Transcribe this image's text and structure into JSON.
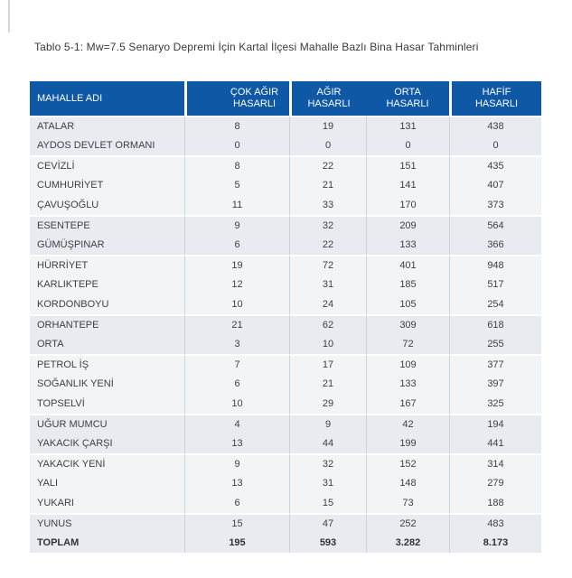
{
  "title": "Tablo 5-1: Mw=7.5 Senaryo Depremi İçin Kartal İlçesi Mahalle Bazlı Bina Hasar Tahminleri",
  "table": {
    "header": {
      "name_col": "MAHALLE ADI",
      "cok_agir": [
        "ÇOK AĞIR",
        "HASARLI"
      ],
      "agir": [
        "AĞIR",
        "HASARLI"
      ],
      "orta": [
        "ORTA",
        "HASARLI"
      ],
      "hafif": [
        "HAFİF",
        "HASARLI"
      ]
    },
    "rows": [
      {
        "name": "ATALAR",
        "values": [
          "8",
          "19",
          "131",
          "438"
        ]
      },
      {
        "name": "AYDOS DEVLET ORMANI",
        "values": [
          "0",
          "0",
          "0",
          "0"
        ]
      },
      {
        "name": "CEVİZLİ",
        "values": [
          "8",
          "22",
          "151",
          "435"
        ]
      },
      {
        "name": "CUMHURİYET",
        "values": [
          "5",
          "21",
          "141",
          "407"
        ]
      },
      {
        "name": "ÇAVUŞOĞLU",
        "values": [
          "11",
          "33",
          "170",
          "373"
        ]
      },
      {
        "name": "ESENTEPE",
        "values": [
          "9",
          "32",
          "209",
          "564"
        ]
      },
      {
        "name": "GÜMÜŞPINAR",
        "values": [
          "6",
          "22",
          "133",
          "366"
        ]
      },
      {
        "name": "HÜRRİYET",
        "values": [
          "19",
          "72",
          "401",
          "948"
        ]
      },
      {
        "name": "KARLIKTEPE",
        "values": [
          "12",
          "31",
          "185",
          "517"
        ]
      },
      {
        "name": "KORDONBOYU",
        "values": [
          "10",
          "24",
          "105",
          "254"
        ]
      },
      {
        "name": "ORHANTEPE",
        "values": [
          "21",
          "62",
          "309",
          "618"
        ]
      },
      {
        "name": "ORTA",
        "values": [
          "3",
          "10",
          "72",
          "255"
        ]
      },
      {
        "name": "PETROL İŞ",
        "values": [
          "7",
          "17",
          "109",
          "377"
        ]
      },
      {
        "name": "SOĞANLIK YENİ",
        "values": [
          "6",
          "21",
          "133",
          "397"
        ]
      },
      {
        "name": "TOPSELVİ",
        "values": [
          "10",
          "29",
          "167",
          "325"
        ]
      },
      {
        "name": "UĞUR MUMCU",
        "values": [
          "4",
          "9",
          "42",
          "194"
        ]
      },
      {
        "name": "YAKACIK ÇARŞI",
        "values": [
          "13",
          "44",
          "199",
          "441"
        ]
      },
      {
        "name": "YAKACIK YENİ",
        "values": [
          "9",
          "32",
          "152",
          "314"
        ]
      },
      {
        "name": "YALI",
        "values": [
          "13",
          "31",
          "148",
          "279"
        ]
      },
      {
        "name": "YUKARI",
        "values": [
          "6",
          "15",
          "73",
          "188"
        ]
      },
      {
        "name": "YUNUS",
        "values": [
          "15",
          "47",
          "252",
          "483"
        ]
      }
    ],
    "total_row": {
      "name": "TOPLAM",
      "values": [
        "195",
        "593",
        "3.282",
        "8.173"
      ]
    }
  },
  "colors": {
    "header_bg": "#0e58a6",
    "header_text": "#ffffff",
    "band_shaded": "#e8ecf1",
    "band_plain": "#f2f4f6",
    "divider": "#c9d4e0",
    "body_text": "#3f3f3f",
    "title_text": "#3a3a3a"
  }
}
